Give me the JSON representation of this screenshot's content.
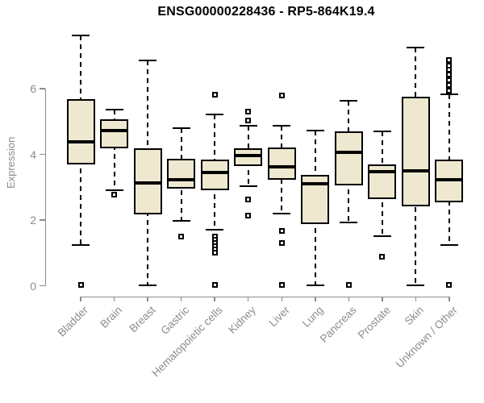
{
  "title": "ENSG00000228436 - RP5-864K19.4",
  "chart_data": {
    "type": "boxplot",
    "title": "ENSG00000228436 - RP5-864K19.4",
    "xlabel": "",
    "ylabel": "Expression",
    "ylim": [
      0,
      7.8
    ],
    "yticks": [
      "0",
      "2",
      "4",
      "6"
    ],
    "grid": false,
    "legend": "none",
    "categories": [
      "Bladder",
      "Brain",
      "Breast",
      "Gastric",
      "Hematopoietic cells",
      "Kidney",
      "Liver",
      "Lung",
      "Pancreas",
      "Prostate",
      "Skin",
      "Unknown / Other"
    ],
    "series": [
      {
        "name": "Bladder",
        "whisker_low": 1.25,
        "q1": 3.7,
        "median": 4.39,
        "q3": 5.69,
        "whisker_high": 7.63,
        "outliers": [
          0.02
        ]
      },
      {
        "name": "Brain",
        "whisker_low": 2.9,
        "q1": 4.18,
        "median": 4.72,
        "q3": 5.06,
        "whisker_high": 5.35,
        "outliers": [
          2.77
        ]
      },
      {
        "name": "Breast",
        "whisker_low": 0.02,
        "q1": 2.18,
        "median": 3.14,
        "q3": 4.18,
        "whisker_high": 6.87,
        "outliers": []
      },
      {
        "name": "Gastric",
        "whisker_low": 1.97,
        "q1": 2.95,
        "median": 3.23,
        "q3": 3.87,
        "whisker_high": 4.79,
        "outliers": [
          1.5
        ]
      },
      {
        "name": "Hematopoietic cells",
        "whisker_low": 1.71,
        "q1": 2.91,
        "median": 3.44,
        "q3": 3.83,
        "whisker_high": 5.22,
        "outliers": [
          5.81,
          1.5,
          1.4,
          1.3,
          1.2,
          1.1,
          1.0,
          0.02
        ]
      },
      {
        "name": "Kidney",
        "whisker_low": 3.03,
        "q1": 3.64,
        "median": 3.97,
        "q3": 4.18,
        "whisker_high": 4.87,
        "outliers": [
          5.31,
          5.03,
          2.63,
          2.14
        ]
      },
      {
        "name": "Liver",
        "whisker_low": 2.2,
        "q1": 3.23,
        "median": 3.61,
        "q3": 4.2,
        "whisker_high": 4.87,
        "outliers": [
          5.8,
          1.66,
          1.3,
          0.02
        ]
      },
      {
        "name": "Lung",
        "whisker_low": 0.02,
        "q1": 1.87,
        "median": 3.11,
        "q3": 3.38,
        "whisker_high": 4.72,
        "outliers": []
      },
      {
        "name": "Pancreas",
        "whisker_low": 1.93,
        "q1": 3.06,
        "median": 4.05,
        "q3": 4.69,
        "whisker_high": 5.63,
        "outliers": [
          0.02
        ]
      },
      {
        "name": "Prostate",
        "whisker_low": 1.5,
        "q1": 2.65,
        "median": 3.47,
        "q3": 3.69,
        "whisker_high": 4.71,
        "outliers": [
          0.89
        ]
      },
      {
        "name": "Skin",
        "whisker_low": 0.02,
        "q1": 2.42,
        "median": 3.5,
        "q3": 5.76,
        "whisker_high": 7.25,
        "outliers": []
      },
      {
        "name": "Unknown / Other",
        "whisker_low": 1.23,
        "q1": 2.54,
        "median": 3.23,
        "q3": 3.85,
        "whisker_high": 5.84,
        "outliers": [
          6.86,
          6.71,
          6.57,
          6.44,
          6.25,
          6.12,
          5.95,
          0.02
        ]
      }
    ],
    "colors": {
      "box_fill": "#EDE8CF",
      "box_border": "#000000",
      "median": "#000000",
      "whisker": "#000000",
      "axis": "#8C8C8C",
      "tick_label": "#8C8C8C",
      "title": "#000000",
      "background": "#FFFFFF"
    }
  }
}
